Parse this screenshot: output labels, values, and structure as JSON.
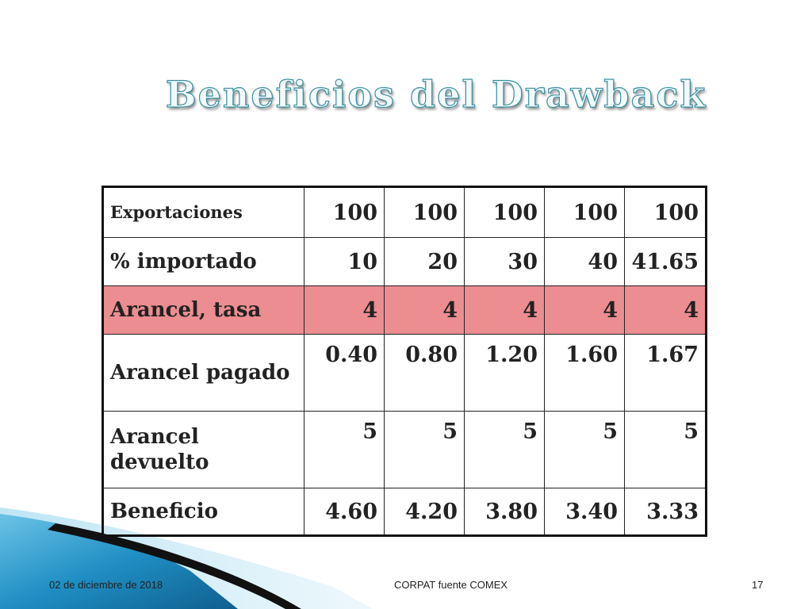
{
  "slide": {
    "title": "Beneficios del Drawback"
  },
  "table": {
    "rows": [
      {
        "label": "Exportaciones",
        "values": [
          "100",
          "100",
          "100",
          "100",
          "100"
        ]
      },
      {
        "label": "% importado",
        "values": [
          "10",
          "20",
          "30",
          "40",
          "41.65"
        ]
      },
      {
        "label": "Arancel, tasa",
        "values": [
          "4",
          "4",
          "4",
          "4",
          "4"
        ]
      },
      {
        "label": "Arancel pagado",
        "values": [
          "0.40",
          "0.80",
          "1.20",
          "1.60",
          "1.67"
        ]
      },
      {
        "label": "Arancel devuelto",
        "values": [
          "5",
          "5",
          "5",
          "5",
          "5"
        ]
      },
      {
        "label": "Beneficio",
        "values": [
          "4.60",
          "4.20",
          "3.80",
          "3.40",
          "3.33"
        ]
      }
    ],
    "highlight_color": "#ec8d91"
  },
  "footer": {
    "date": "02 de diciembre de 2018",
    "source": "CORPAT  fuente  COMEX",
    "page": "17"
  },
  "colors": {
    "title_fill": "#f2fbfc",
    "title_outline": "#3c8ea0",
    "accent_blue": "#1f8fc4"
  }
}
